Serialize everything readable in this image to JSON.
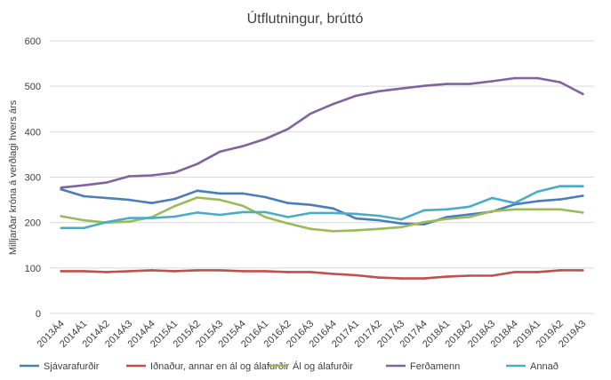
{
  "chart_data": {
    "type": "line",
    "title": "Útflutningur, brúttó",
    "xlabel": "",
    "ylabel": "Milljarðar króna á verðlagi hvers árs",
    "ylim": [
      0,
      600
    ],
    "yticks": [
      "0",
      "100",
      "200",
      "300",
      "400",
      "500",
      "600"
    ],
    "grid": true,
    "legend": "bottom",
    "categories": [
      "2013Á4",
      "2014Á1",
      "2014Á2",
      "2014Á3",
      "2014Á4",
      "2015Á1",
      "2015Á2",
      "2015Á3",
      "2015Á4",
      "2016Á1",
      "2016Á2",
      "2016Á3",
      "2016Á4",
      "2017Á1",
      "2017Á2",
      "2017Á3",
      "2017Á4",
      "2018Á1",
      "2018Á2",
      "2018Á3",
      "2018Á4",
      "2019Á1",
      "2019Á2",
      "2019Á3"
    ],
    "series": [
      {
        "name": "Sjávarafurðir",
        "color": "#4a7ebb",
        "values": [
          273,
          258,
          254,
          250,
          243,
          252,
          270,
          264,
          264,
          256,
          243,
          239,
          231,
          209,
          205,
          198,
          196,
          212,
          218,
          224,
          240,
          247,
          251,
          259
        ]
      },
      {
        "name": "Iðnaður, annar en ál og álafurðir",
        "color": "#c0504d",
        "values": [
          93,
          93,
          91,
          93,
          95,
          93,
          95,
          95,
          93,
          93,
          91,
          91,
          87,
          84,
          79,
          77,
          77,
          81,
          83,
          83,
          91,
          91,
          95,
          95
        ]
      },
      {
        "name": "Ál og álafurðir",
        "color": "#9bbb59",
        "values": [
          214,
          205,
          200,
          202,
          212,
          236,
          255,
          250,
          237,
          212,
          198,
          186,
          181,
          183,
          186,
          190,
          201,
          208,
          212,
          225,
          229,
          229,
          229,
          222
        ]
      },
      {
        "name": "Ferðamenn",
        "color": "#8064a2",
        "values": [
          277,
          282,
          288,
          302,
          304,
          310,
          329,
          356,
          368,
          384,
          406,
          440,
          461,
          479,
          489,
          495,
          501,
          505,
          505,
          511,
          518,
          518,
          509,
          483
        ]
      },
      {
        "name": "Annað",
        "color": "#4bacc6",
        "values": [
          188,
          188,
          201,
          210,
          210,
          213,
          222,
          217,
          223,
          223,
          212,
          221,
          221,
          219,
          215,
          207,
          227,
          229,
          235,
          254,
          243,
          268,
          280,
          280
        ]
      }
    ]
  }
}
